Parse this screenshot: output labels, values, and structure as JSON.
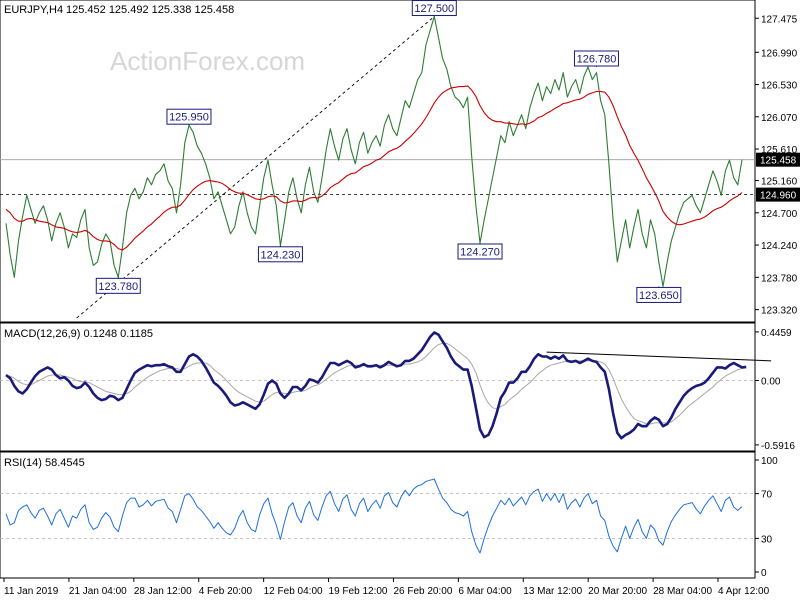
{
  "window": {
    "symbol_label": "EURJPY,H4",
    "ohlc": "125.452 125.492 125.338 125.458",
    "watermark": "ActionForex.com"
  },
  "colors": {
    "price": "#2e7d32",
    "sma": "#cc0000",
    "macd": "#1a1a7a",
    "signal": "#a8a8a8",
    "rsi": "#1e6fe0",
    "trendline": "#000000",
    "label_border": "#1a1a7a",
    "label_text": "#1a1a7a"
  },
  "chart_data": [
    {
      "type": "line",
      "panel": "price",
      "ylim": [
        123.2,
        127.65
      ],
      "y_ticks": [
        "127.475",
        "126.990",
        "126.530",
        "126.070",
        "125.610",
        "125.160",
        "124.700",
        "124.240",
        "123.780",
        "123.320"
      ],
      "current_price": "125.458",
      "dashed_level": "124.960",
      "x_ticks": [
        "11 Jan 2019",
        "21 Jan 04:00",
        "28 Jan 12:00",
        "4 Feb 20:00",
        "12 Feb 04:00",
        "19 Feb 12:00",
        "26 Feb 20:00",
        "6 Mar 04:00",
        "13 Mar 12:00",
        "20 Mar 20:00",
        "28 Mar 04:00",
        "4 Apr 12:00"
      ],
      "annotations": [
        {
          "text": "123.780",
          "i": 27
        },
        {
          "text": "125.950",
          "i": 44
        },
        {
          "text": "124.230",
          "i": 66
        },
        {
          "text": "127.500",
          "i": 103
        },
        {
          "text": "124.270",
          "i": 114
        },
        {
          "text": "126.780",
          "i": 142
        },
        {
          "text": "123.650",
          "i": 157
        }
      ],
      "series": [
        {
          "values": [
            124.55,
            124.1,
            123.78,
            124.3,
            124.65,
            124.95,
            124.75,
            124.55,
            124.7,
            124.8,
            124.6,
            124.3,
            124.55,
            124.7,
            124.5,
            124.2,
            124.4,
            124.35,
            124.6,
            124.75,
            124.2,
            123.95,
            124.0,
            124.25,
            124.4,
            124.3,
            123.95,
            123.78,
            124.2,
            124.7,
            124.95,
            125.05,
            124.9,
            125.0,
            125.2,
            125.1,
            125.25,
            125.3,
            125.4,
            125.15,
            125.05,
            124.7,
            125.1,
            125.7,
            125.95,
            125.85,
            125.65,
            125.55,
            125.4,
            125.2,
            124.9,
            125.0,
            124.8,
            124.6,
            124.4,
            124.5,
            124.8,
            125.0,
            124.7,
            124.5,
            124.4,
            124.8,
            125.2,
            125.45,
            125.1,
            124.8,
            124.23,
            124.6,
            125.0,
            125.2,
            124.9,
            124.7,
            125.1,
            125.35,
            125.0,
            124.85,
            125.2,
            125.6,
            125.9,
            125.65,
            125.45,
            125.75,
            125.9,
            125.6,
            125.4,
            125.7,
            125.85,
            125.55,
            125.7,
            125.8,
            125.65,
            125.95,
            126.1,
            125.9,
            125.8,
            126.05,
            126.3,
            126.2,
            126.4,
            126.6,
            126.7,
            127.1,
            127.3,
            127.5,
            127.2,
            126.9,
            126.75,
            126.5,
            126.35,
            126.3,
            126.2,
            126.35,
            125.5,
            124.8,
            124.27,
            124.6,
            124.9,
            125.2,
            125.5,
            125.8,
            125.7,
            126.0,
            125.8,
            125.95,
            126.1,
            125.9,
            126.2,
            126.4,
            126.55,
            126.3,
            126.5,
            126.4,
            126.6,
            126.45,
            126.7,
            126.35,
            126.5,
            126.6,
            126.4,
            126.65,
            126.78,
            126.6,
            126.7,
            126.3,
            126.1,
            125.4,
            124.6,
            124.0,
            124.3,
            124.6,
            124.2,
            124.5,
            124.75,
            124.4,
            124.2,
            124.6,
            124.4,
            124.0,
            123.65,
            124.0,
            124.3,
            124.5,
            124.7,
            124.85,
            124.9,
            124.95,
            124.8,
            124.7,
            124.9,
            125.1,
            125.3,
            125.15,
            124.95,
            125.3,
            125.45,
            125.2,
            125.1,
            125.458
          ]
        },
        {
          "values": [
            124.75,
            124.7,
            124.62,
            124.58,
            124.58,
            124.61,
            124.62,
            124.6,
            124.58,
            124.57,
            124.56,
            124.53,
            124.5,
            124.49,
            124.48,
            124.45,
            124.43,
            124.42,
            124.43,
            124.45,
            124.42,
            124.36,
            124.32,
            124.3,
            124.3,
            124.29,
            124.25,
            124.19,
            124.17,
            124.21,
            124.27,
            124.34,
            124.39,
            124.44,
            124.5,
            124.54,
            124.6,
            124.65,
            124.71,
            124.75,
            124.78,
            124.78,
            124.81,
            124.88,
            124.96,
            125.03,
            125.08,
            125.12,
            125.15,
            125.16,
            125.15,
            125.14,
            125.12,
            125.08,
            125.03,
            125.0,
            124.98,
            124.98,
            124.96,
            124.93,
            124.9,
            124.89,
            124.9,
            124.93,
            124.94,
            124.93,
            124.87,
            124.84,
            124.85,
            124.87,
            124.87,
            124.86,
            124.88,
            124.91,
            124.92,
            124.91,
            124.94,
            124.99,
            125.06,
            125.1,
            125.13,
            125.18,
            125.23,
            125.26,
            125.27,
            125.31,
            125.36,
            125.38,
            125.41,
            125.45,
            125.47,
            125.52,
            125.57,
            125.6,
            125.62,
            125.66,
            125.72,
            125.77,
            125.83,
            125.9,
            125.97,
            126.06,
            126.16,
            126.27,
            126.35,
            126.41,
            126.45,
            126.48,
            126.49,
            126.5,
            126.5,
            126.51,
            126.45,
            126.36,
            126.23,
            126.13,
            126.06,
            126.02,
            126.0,
            126.0,
            125.98,
            125.98,
            125.97,
            125.96,
            125.97,
            125.96,
            125.98,
            126.01,
            126.06,
            126.08,
            126.12,
            126.15,
            126.19,
            126.22,
            126.26,
            126.27,
            126.29,
            126.31,
            126.32,
            126.35,
            126.39,
            126.41,
            126.43,
            126.43,
            126.42,
            126.35,
            126.23,
            126.07,
            125.93,
            125.81,
            125.66,
            125.55,
            125.45,
            125.33,
            125.2,
            125.1,
            124.99,
            124.87,
            124.72,
            124.64,
            124.58,
            124.54,
            124.53,
            124.54,
            124.56,
            124.58,
            124.6,
            124.61,
            124.64,
            124.68,
            124.73,
            124.76,
            124.78,
            124.82,
            124.87,
            124.91,
            124.94,
            124.99
          ]
        }
      ]
    },
    {
      "type": "line",
      "panel": "macd",
      "title": "MACD(12,26,9) 0.1248 0.1185",
      "ylim": [
        -0.62,
        0.5
      ],
      "y_ticks": [
        "0.4459",
        "0.00",
        "-0.5916"
      ],
      "series": [
        {
          "values": [
            0.05,
            0.02,
            -0.05,
            -0.1,
            -0.12,
            -0.08,
            -0.02,
            0.04,
            0.08,
            0.1,
            0.12,
            0.1,
            0.05,
            0.02,
            0.03,
            0.0,
            -0.05,
            -0.07,
            -0.06,
            -0.02,
            -0.06,
            -0.12,
            -0.16,
            -0.18,
            -0.17,
            -0.14,
            -0.15,
            -0.18,
            -0.16,
            -0.08,
            0.0,
            0.07,
            0.1,
            0.12,
            0.14,
            0.13,
            0.14,
            0.14,
            0.15,
            0.13,
            0.12,
            0.08,
            0.08,
            0.15,
            0.22,
            0.24,
            0.22,
            0.18,
            0.12,
            0.05,
            -0.02,
            -0.05,
            -0.09,
            -0.14,
            -0.2,
            -0.23,
            -0.22,
            -0.2,
            -0.22,
            -0.24,
            -0.26,
            -0.22,
            -0.13,
            -0.03,
            0.0,
            -0.03,
            -0.12,
            -0.16,
            -0.12,
            -0.06,
            -0.06,
            -0.09,
            -0.05,
            0.01,
            0.0,
            -0.02,
            0.03,
            0.1,
            0.16,
            0.16,
            0.14,
            0.16,
            0.18,
            0.16,
            0.12,
            0.13,
            0.15,
            0.13,
            0.13,
            0.14,
            0.12,
            0.14,
            0.17,
            0.15,
            0.13,
            0.14,
            0.18,
            0.18,
            0.2,
            0.24,
            0.28,
            0.34,
            0.4,
            0.44,
            0.42,
            0.36,
            0.3,
            0.22,
            0.16,
            0.13,
            0.1,
            0.1,
            -0.05,
            -0.25,
            -0.45,
            -0.52,
            -0.5,
            -0.42,
            -0.3,
            -0.16,
            -0.1,
            -0.02,
            -0.02,
            0.02,
            0.08,
            0.08,
            0.13,
            0.2,
            0.24,
            0.22,
            0.22,
            0.2,
            0.22,
            0.2,
            0.23,
            0.18,
            0.17,
            0.18,
            0.16,
            0.18,
            0.2,
            0.18,
            0.17,
            0.12,
            0.08,
            -0.08,
            -0.3,
            -0.48,
            -0.53,
            -0.5,
            -0.48,
            -0.45,
            -0.4,
            -0.42,
            -0.42,
            -0.37,
            -0.34,
            -0.36,
            -0.42,
            -0.4,
            -0.34,
            -0.26,
            -0.2,
            -0.14,
            -0.1,
            -0.07,
            -0.05,
            -0.04,
            -0.02,
            0.02,
            0.07,
            0.12,
            0.12,
            0.11,
            0.14,
            0.16,
            0.14,
            0.12,
            0.1248
          ]
        },
        {
          "values": [
            0.04,
            0.04,
            0.02,
            -0.01,
            -0.03,
            -0.04,
            -0.04,
            -0.02,
            0.0,
            0.02,
            0.04,
            0.05,
            0.05,
            0.05,
            0.04,
            0.03,
            0.02,
            0.0,
            -0.01,
            -0.01,
            -0.02,
            -0.04,
            -0.06,
            -0.08,
            -0.1,
            -0.11,
            -0.12,
            -0.13,
            -0.13,
            -0.12,
            -0.1,
            -0.06,
            -0.03,
            0.0,
            0.03,
            0.05,
            0.07,
            0.09,
            0.1,
            0.11,
            0.11,
            0.11,
            0.1,
            0.11,
            0.13,
            0.15,
            0.16,
            0.16,
            0.16,
            0.14,
            0.1,
            0.07,
            0.04,
            0.0,
            -0.04,
            -0.08,
            -0.11,
            -0.13,
            -0.15,
            -0.17,
            -0.19,
            -0.2,
            -0.19,
            -0.16,
            -0.13,
            -0.11,
            -0.11,
            -0.12,
            -0.12,
            -0.11,
            -0.1,
            -0.1,
            -0.09,
            -0.07,
            -0.05,
            -0.04,
            -0.02,
            0.01,
            0.04,
            0.07,
            0.09,
            0.11,
            0.13,
            0.14,
            0.14,
            0.14,
            0.14,
            0.14,
            0.14,
            0.14,
            0.14,
            0.14,
            0.14,
            0.14,
            0.14,
            0.14,
            0.15,
            0.15,
            0.16,
            0.17,
            0.19,
            0.22,
            0.26,
            0.3,
            0.33,
            0.34,
            0.34,
            0.32,
            0.29,
            0.26,
            0.23,
            0.2,
            0.15,
            0.07,
            -0.04,
            -0.14,
            -0.21,
            -0.25,
            -0.26,
            -0.24,
            -0.22,
            -0.18,
            -0.15,
            -0.12,
            -0.08,
            -0.05,
            -0.02,
            0.02,
            0.06,
            0.09,
            0.12,
            0.14,
            0.15,
            0.16,
            0.17,
            0.18,
            0.18,
            0.18,
            0.18,
            0.18,
            0.18,
            0.18,
            0.18,
            0.17,
            0.15,
            0.1,
            0.02,
            -0.08,
            -0.17,
            -0.24,
            -0.3,
            -0.35,
            -0.37,
            -0.38,
            -0.4,
            -0.4,
            -0.39,
            -0.39,
            -0.39,
            -0.39,
            -0.38,
            -0.35,
            -0.32,
            -0.28,
            -0.24,
            -0.21,
            -0.18,
            -0.15,
            -0.12,
            -0.09,
            -0.06,
            -0.02,
            0.01,
            0.04,
            0.06,
            0.08,
            0.1,
            0.11,
            0.1185
          ]
        }
      ],
      "trendline_from": {
        "i": 130,
        "value": 0.26
      },
      "trendline_to": {
        "i": 184,
        "value": 0.18
      }
    },
    {
      "type": "line",
      "panel": "rsi",
      "title": "RSI(14) 58.4545",
      "ylim": [
        0,
        100
      ],
      "y_ticks": [
        "100",
        "70",
        "30",
        "0"
      ],
      "dashed_levels": [
        70,
        30
      ],
      "series": [
        {
          "values": [
            52,
            42,
            44,
            55,
            58,
            60,
            53,
            48,
            55,
            57,
            50,
            42,
            52,
            56,
            48,
            40,
            50,
            48,
            56,
            60,
            44,
            38,
            40,
            48,
            53,
            49,
            40,
            36,
            50,
            62,
            66,
            66,
            58,
            60,
            64,
            59,
            63,
            64,
            65,
            57,
            54,
            44,
            56,
            68,
            70,
            65,
            58,
            55,
            50,
            45,
            39,
            44,
            39,
            35,
            33,
            39,
            49,
            55,
            44,
            38,
            36,
            51,
            61,
            66,
            52,
            42,
            29,
            45,
            58,
            62,
            50,
            44,
            57,
            63,
            51,
            46,
            58,
            68,
            72,
            61,
            54,
            65,
            69,
            56,
            50,
            61,
            66,
            54,
            60,
            64,
            57,
            68,
            71,
            62,
            58,
            67,
            73,
            68,
            74,
            77,
            78,
            81,
            82,
            83,
            74,
            66,
            62,
            56,
            53,
            52,
            50,
            54,
            36,
            24,
            17,
            30,
            41,
            50,
            57,
            64,
            60,
            66,
            59,
            63,
            67,
            60,
            68,
            72,
            74,
            63,
            70,
            64,
            70,
            62,
            70,
            56,
            62,
            65,
            58,
            66,
            70,
            61,
            64,
            50,
            46,
            32,
            23,
            18,
            30,
            41,
            30,
            40,
            47,
            36,
            30,
            42,
            38,
            28,
            24,
            36,
            45,
            51,
            56,
            60,
            61,
            62,
            56,
            52,
            59,
            64,
            68,
            61,
            54,
            64,
            67,
            58,
            55,
            58.45
          ]
        }
      ]
    }
  ]
}
